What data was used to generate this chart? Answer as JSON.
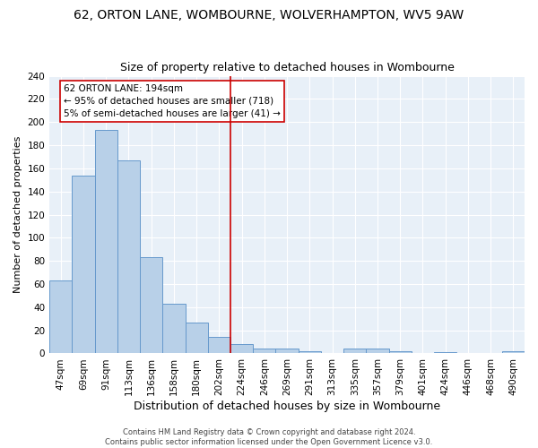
{
  "title": "62, ORTON LANE, WOMBOURNE, WOLVERHAMPTON, WV5 9AW",
  "subtitle": "Size of property relative to detached houses in Wombourne",
  "xlabel": "Distribution of detached houses by size in Wombourne",
  "ylabel": "Number of detached properties",
  "bar_color": "#b8d0e8",
  "bar_edge_color": "#6699cc",
  "background_color": "#e8f0f8",
  "categories": [
    "47sqm",
    "69sqm",
    "91sqm",
    "113sqm",
    "136sqm",
    "158sqm",
    "180sqm",
    "202sqm",
    "224sqm",
    "246sqm",
    "269sqm",
    "291sqm",
    "313sqm",
    "335sqm",
    "357sqm",
    "379sqm",
    "401sqm",
    "424sqm",
    "446sqm",
    "468sqm",
    "490sqm"
  ],
  "values": [
    63,
    154,
    193,
    167,
    83,
    43,
    27,
    14,
    8,
    4,
    4,
    2,
    0,
    4,
    4,
    2,
    0,
    1,
    0,
    0,
    2
  ],
  "vline_index": 7.5,
  "vline_color": "#cc0000",
  "annotation_text": "62 ORTON LANE: 194sqm\n← 95% of detached houses are smaller (718)\n5% of semi-detached houses are larger (41) →",
  "ylim": [
    0,
    240
  ],
  "yticks": [
    0,
    20,
    40,
    60,
    80,
    100,
    120,
    140,
    160,
    180,
    200,
    220,
    240
  ],
  "footer": "Contains HM Land Registry data © Crown copyright and database right 2024.\nContains public sector information licensed under the Open Government Licence v3.0.",
  "title_fontsize": 10,
  "subtitle_fontsize": 9,
  "xlabel_fontsize": 9,
  "ylabel_fontsize": 8,
  "tick_fontsize": 7.5,
  "annotation_fontsize": 7.5,
  "footer_fontsize": 6
}
